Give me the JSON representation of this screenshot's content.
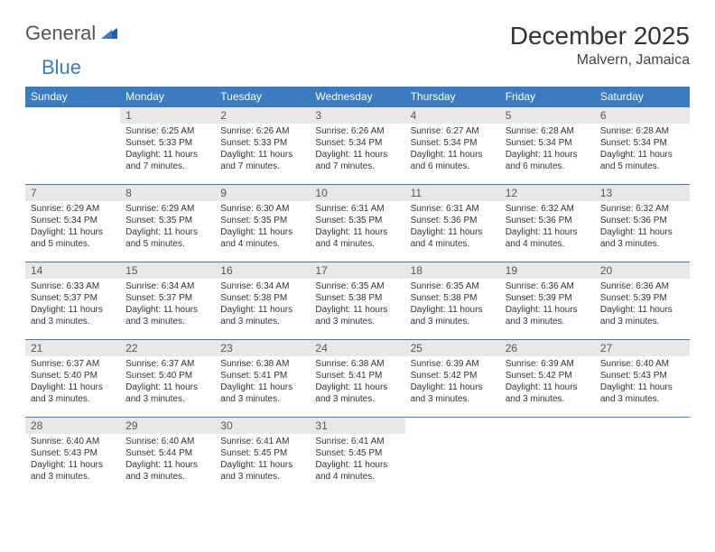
{
  "logo": {
    "general": "General",
    "blue": "Blue"
  },
  "title": "December 2025",
  "location": "Malvern, Jamaica",
  "colors": {
    "header_bg": "#3b7bbf",
    "header_fg": "#ffffff",
    "daynum_bg": "#e8e8e8",
    "row_border": "#3b7bbf",
    "text": "#333333",
    "logo_gray": "#555555",
    "logo_blue": "#3b7bbf"
  },
  "weekdays": [
    "Sunday",
    "Monday",
    "Tuesday",
    "Wednesday",
    "Thursday",
    "Friday",
    "Saturday"
  ],
  "weeks": [
    [
      {
        "day": "",
        "lines": []
      },
      {
        "day": "1",
        "lines": [
          "Sunrise: 6:25 AM",
          "Sunset: 5:33 PM",
          "Daylight: 11 hours and 7 minutes."
        ]
      },
      {
        "day": "2",
        "lines": [
          "Sunrise: 6:26 AM",
          "Sunset: 5:33 PM",
          "Daylight: 11 hours and 7 minutes."
        ]
      },
      {
        "day": "3",
        "lines": [
          "Sunrise: 6:26 AM",
          "Sunset: 5:34 PM",
          "Daylight: 11 hours and 7 minutes."
        ]
      },
      {
        "day": "4",
        "lines": [
          "Sunrise: 6:27 AM",
          "Sunset: 5:34 PM",
          "Daylight: 11 hours and 6 minutes."
        ]
      },
      {
        "day": "5",
        "lines": [
          "Sunrise: 6:28 AM",
          "Sunset: 5:34 PM",
          "Daylight: 11 hours and 6 minutes."
        ]
      },
      {
        "day": "6",
        "lines": [
          "Sunrise: 6:28 AM",
          "Sunset: 5:34 PM",
          "Daylight: 11 hours and 5 minutes."
        ]
      }
    ],
    [
      {
        "day": "7",
        "lines": [
          "Sunrise: 6:29 AM",
          "Sunset: 5:34 PM",
          "Daylight: 11 hours and 5 minutes."
        ]
      },
      {
        "day": "8",
        "lines": [
          "Sunrise: 6:29 AM",
          "Sunset: 5:35 PM",
          "Daylight: 11 hours and 5 minutes."
        ]
      },
      {
        "day": "9",
        "lines": [
          "Sunrise: 6:30 AM",
          "Sunset: 5:35 PM",
          "Daylight: 11 hours and 4 minutes."
        ]
      },
      {
        "day": "10",
        "lines": [
          "Sunrise: 6:31 AM",
          "Sunset: 5:35 PM",
          "Daylight: 11 hours and 4 minutes."
        ]
      },
      {
        "day": "11",
        "lines": [
          "Sunrise: 6:31 AM",
          "Sunset: 5:36 PM",
          "Daylight: 11 hours and 4 minutes."
        ]
      },
      {
        "day": "12",
        "lines": [
          "Sunrise: 6:32 AM",
          "Sunset: 5:36 PM",
          "Daylight: 11 hours and 4 minutes."
        ]
      },
      {
        "day": "13",
        "lines": [
          "Sunrise: 6:32 AM",
          "Sunset: 5:36 PM",
          "Daylight: 11 hours and 3 minutes."
        ]
      }
    ],
    [
      {
        "day": "14",
        "lines": [
          "Sunrise: 6:33 AM",
          "Sunset: 5:37 PM",
          "Daylight: 11 hours and 3 minutes."
        ]
      },
      {
        "day": "15",
        "lines": [
          "Sunrise: 6:34 AM",
          "Sunset: 5:37 PM",
          "Daylight: 11 hours and 3 minutes."
        ]
      },
      {
        "day": "16",
        "lines": [
          "Sunrise: 6:34 AM",
          "Sunset: 5:38 PM",
          "Daylight: 11 hours and 3 minutes."
        ]
      },
      {
        "day": "17",
        "lines": [
          "Sunrise: 6:35 AM",
          "Sunset: 5:38 PM",
          "Daylight: 11 hours and 3 minutes."
        ]
      },
      {
        "day": "18",
        "lines": [
          "Sunrise: 6:35 AM",
          "Sunset: 5:38 PM",
          "Daylight: 11 hours and 3 minutes."
        ]
      },
      {
        "day": "19",
        "lines": [
          "Sunrise: 6:36 AM",
          "Sunset: 5:39 PM",
          "Daylight: 11 hours and 3 minutes."
        ]
      },
      {
        "day": "20",
        "lines": [
          "Sunrise: 6:36 AM",
          "Sunset: 5:39 PM",
          "Daylight: 11 hours and 3 minutes."
        ]
      }
    ],
    [
      {
        "day": "21",
        "lines": [
          "Sunrise: 6:37 AM",
          "Sunset: 5:40 PM",
          "Daylight: 11 hours and 3 minutes."
        ]
      },
      {
        "day": "22",
        "lines": [
          "Sunrise: 6:37 AM",
          "Sunset: 5:40 PM",
          "Daylight: 11 hours and 3 minutes."
        ]
      },
      {
        "day": "23",
        "lines": [
          "Sunrise: 6:38 AM",
          "Sunset: 5:41 PM",
          "Daylight: 11 hours and 3 minutes."
        ]
      },
      {
        "day": "24",
        "lines": [
          "Sunrise: 6:38 AM",
          "Sunset: 5:41 PM",
          "Daylight: 11 hours and 3 minutes."
        ]
      },
      {
        "day": "25",
        "lines": [
          "Sunrise: 6:39 AM",
          "Sunset: 5:42 PM",
          "Daylight: 11 hours and 3 minutes."
        ]
      },
      {
        "day": "26",
        "lines": [
          "Sunrise: 6:39 AM",
          "Sunset: 5:42 PM",
          "Daylight: 11 hours and 3 minutes."
        ]
      },
      {
        "day": "27",
        "lines": [
          "Sunrise: 6:40 AM",
          "Sunset: 5:43 PM",
          "Daylight: 11 hours and 3 minutes."
        ]
      }
    ],
    [
      {
        "day": "28",
        "lines": [
          "Sunrise: 6:40 AM",
          "Sunset: 5:43 PM",
          "Daylight: 11 hours and 3 minutes."
        ]
      },
      {
        "day": "29",
        "lines": [
          "Sunrise: 6:40 AM",
          "Sunset: 5:44 PM",
          "Daylight: 11 hours and 3 minutes."
        ]
      },
      {
        "day": "30",
        "lines": [
          "Sunrise: 6:41 AM",
          "Sunset: 5:45 PM",
          "Daylight: 11 hours and 3 minutes."
        ]
      },
      {
        "day": "31",
        "lines": [
          "Sunrise: 6:41 AM",
          "Sunset: 5:45 PM",
          "Daylight: 11 hours and 4 minutes."
        ]
      },
      {
        "day": "",
        "lines": []
      },
      {
        "day": "",
        "lines": []
      },
      {
        "day": "",
        "lines": []
      }
    ]
  ]
}
